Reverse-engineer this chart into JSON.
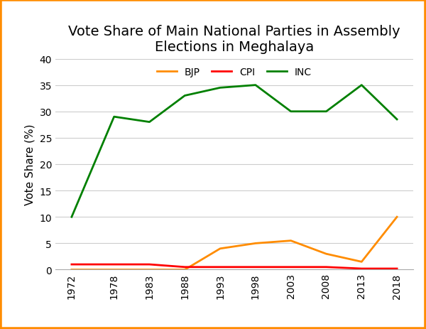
{
  "title": "Vote Share of Main National Parties in Assembly\nElections in Meghalaya",
  "ylabel": "Vote Share (%)",
  "years": [
    1972,
    1978,
    1983,
    1988,
    1993,
    1998,
    2003,
    2008,
    2013,
    2018
  ],
  "BJP": [
    0,
    0,
    0,
    0,
    4,
    5,
    5.5,
    3,
    1.5,
    10
  ],
  "CPI": [
    1,
    1,
    1,
    0.5,
    0.5,
    0.5,
    0.5,
    0.5,
    0.2,
    0.2
  ],
  "INC": [
    10,
    29,
    28,
    33,
    34.5,
    35,
    30,
    30,
    35,
    28.5
  ],
  "BJP_color": "#FF8C00",
  "CPI_color": "#FF0000",
  "INC_color": "#008000",
  "ylim_min": 0,
  "ylim_max": 40,
  "yticks": [
    0,
    5,
    10,
    15,
    20,
    25,
    30,
    35,
    40
  ],
  "title_fontsize": 14,
  "axis_label_fontsize": 11,
  "tick_fontsize": 10,
  "legend_fontsize": 10,
  "border_color": "#FF8C00",
  "background_color": "#FFFFFF",
  "line_width": 2.0,
  "figwidth": 6.0,
  "figheight": 4.64,
  "dpi": 100
}
